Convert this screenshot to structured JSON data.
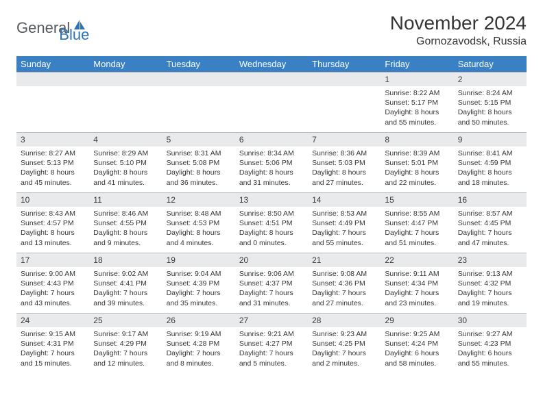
{
  "logo": {
    "part1": "General",
    "part2": "Blue"
  },
  "title": "November 2024",
  "subtitle": "Gornozavodsk, Russia",
  "colors": {
    "header_bg": "#3a80c4",
    "header_fg": "#ffffff",
    "daynum_bg": "#e8eaec",
    "text": "#333537",
    "border": "#b8bcc0",
    "logo_gray": "#555a5f",
    "logo_blue": "#2c72b8"
  },
  "weekdays": [
    "Sunday",
    "Monday",
    "Tuesday",
    "Wednesday",
    "Thursday",
    "Friday",
    "Saturday"
  ],
  "weeks": [
    [
      null,
      null,
      null,
      null,
      null,
      {
        "n": "1",
        "sr": "8:22 AM",
        "ss": "5:17 PM",
        "dl": "8 hours and 55 minutes."
      },
      {
        "n": "2",
        "sr": "8:24 AM",
        "ss": "5:15 PM",
        "dl": "8 hours and 50 minutes."
      }
    ],
    [
      {
        "n": "3",
        "sr": "8:27 AM",
        "ss": "5:13 PM",
        "dl": "8 hours and 45 minutes."
      },
      {
        "n": "4",
        "sr": "8:29 AM",
        "ss": "5:10 PM",
        "dl": "8 hours and 41 minutes."
      },
      {
        "n": "5",
        "sr": "8:31 AM",
        "ss": "5:08 PM",
        "dl": "8 hours and 36 minutes."
      },
      {
        "n": "6",
        "sr": "8:34 AM",
        "ss": "5:06 PM",
        "dl": "8 hours and 31 minutes."
      },
      {
        "n": "7",
        "sr": "8:36 AM",
        "ss": "5:03 PM",
        "dl": "8 hours and 27 minutes."
      },
      {
        "n": "8",
        "sr": "8:39 AM",
        "ss": "5:01 PM",
        "dl": "8 hours and 22 minutes."
      },
      {
        "n": "9",
        "sr": "8:41 AM",
        "ss": "4:59 PM",
        "dl": "8 hours and 18 minutes."
      }
    ],
    [
      {
        "n": "10",
        "sr": "8:43 AM",
        "ss": "4:57 PM",
        "dl": "8 hours and 13 minutes."
      },
      {
        "n": "11",
        "sr": "8:46 AM",
        "ss": "4:55 PM",
        "dl": "8 hours and 9 minutes."
      },
      {
        "n": "12",
        "sr": "8:48 AM",
        "ss": "4:53 PM",
        "dl": "8 hours and 4 minutes."
      },
      {
        "n": "13",
        "sr": "8:50 AM",
        "ss": "4:51 PM",
        "dl": "8 hours and 0 minutes."
      },
      {
        "n": "14",
        "sr": "8:53 AM",
        "ss": "4:49 PM",
        "dl": "7 hours and 55 minutes."
      },
      {
        "n": "15",
        "sr": "8:55 AM",
        "ss": "4:47 PM",
        "dl": "7 hours and 51 minutes."
      },
      {
        "n": "16",
        "sr": "8:57 AM",
        "ss": "4:45 PM",
        "dl": "7 hours and 47 minutes."
      }
    ],
    [
      {
        "n": "17",
        "sr": "9:00 AM",
        "ss": "4:43 PM",
        "dl": "7 hours and 43 minutes."
      },
      {
        "n": "18",
        "sr": "9:02 AM",
        "ss": "4:41 PM",
        "dl": "7 hours and 39 minutes."
      },
      {
        "n": "19",
        "sr": "9:04 AM",
        "ss": "4:39 PM",
        "dl": "7 hours and 35 minutes."
      },
      {
        "n": "20",
        "sr": "9:06 AM",
        "ss": "4:37 PM",
        "dl": "7 hours and 31 minutes."
      },
      {
        "n": "21",
        "sr": "9:08 AM",
        "ss": "4:36 PM",
        "dl": "7 hours and 27 minutes."
      },
      {
        "n": "22",
        "sr": "9:11 AM",
        "ss": "4:34 PM",
        "dl": "7 hours and 23 minutes."
      },
      {
        "n": "23",
        "sr": "9:13 AM",
        "ss": "4:32 PM",
        "dl": "7 hours and 19 minutes."
      }
    ],
    [
      {
        "n": "24",
        "sr": "9:15 AM",
        "ss": "4:31 PM",
        "dl": "7 hours and 15 minutes."
      },
      {
        "n": "25",
        "sr": "9:17 AM",
        "ss": "4:29 PM",
        "dl": "7 hours and 12 minutes."
      },
      {
        "n": "26",
        "sr": "9:19 AM",
        "ss": "4:28 PM",
        "dl": "7 hours and 8 minutes."
      },
      {
        "n": "27",
        "sr": "9:21 AM",
        "ss": "4:27 PM",
        "dl": "7 hours and 5 minutes."
      },
      {
        "n": "28",
        "sr": "9:23 AM",
        "ss": "4:25 PM",
        "dl": "7 hours and 2 minutes."
      },
      {
        "n": "29",
        "sr": "9:25 AM",
        "ss": "4:24 PM",
        "dl": "6 hours and 58 minutes."
      },
      {
        "n": "30",
        "sr": "9:27 AM",
        "ss": "4:23 PM",
        "dl": "6 hours and 55 minutes."
      }
    ]
  ],
  "labels": {
    "sunrise": "Sunrise:",
    "sunset": "Sunset:",
    "daylight": "Daylight:"
  }
}
